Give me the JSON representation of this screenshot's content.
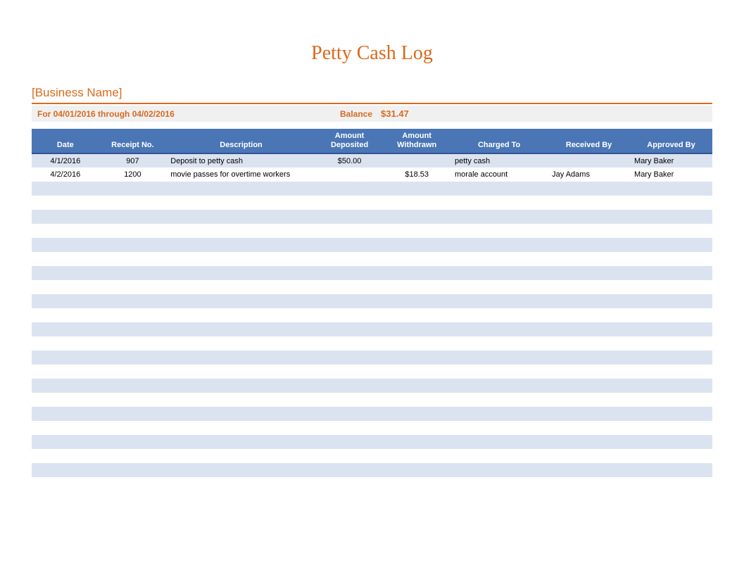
{
  "title": "Petty Cash Log",
  "business_name": "[Business Name]",
  "date_range": "For 04/01/2016 through 04/02/2016",
  "balance_label": "Balance",
  "balance_value": "$31.47",
  "colors": {
    "orange": "#d96a1f",
    "header_blue": "#4a76b5",
    "header_border": "#2f5494",
    "row_alt": "#dce3f0",
    "row_white": "#ffffff",
    "date_bar_bg": "#f0f0f0",
    "text": "#000000"
  },
  "columns": [
    {
      "label": "Date",
      "class": "col-date"
    },
    {
      "label": "Receipt No.",
      "class": "col-receipt"
    },
    {
      "label": "Description",
      "class": "col-description"
    },
    {
      "label": "Amount\nDeposited",
      "class": "col-deposited"
    },
    {
      "label": "Amount\nWithdrawn",
      "class": "col-withdrawn"
    },
    {
      "label": "Charged To",
      "class": "col-charged"
    },
    {
      "label": "Received By",
      "class": "col-received"
    },
    {
      "label": "Approved By",
      "class": "col-approved"
    }
  ],
  "rows": [
    {
      "date": "4/1/2016",
      "receipt": "907",
      "description": "Deposit to petty cash",
      "deposited": "$50.00",
      "withdrawn": "",
      "charged": "petty cash",
      "received": "",
      "approved": "Mary Baker"
    },
    {
      "date": "4/2/2016",
      "receipt": "1200",
      "description": "movie passes for overtime workers",
      "deposited": "",
      "withdrawn": "$18.53",
      "charged": "morale account",
      "received": "Jay Adams",
      "approved": "Mary Baker"
    }
  ],
  "empty_rows": 22
}
